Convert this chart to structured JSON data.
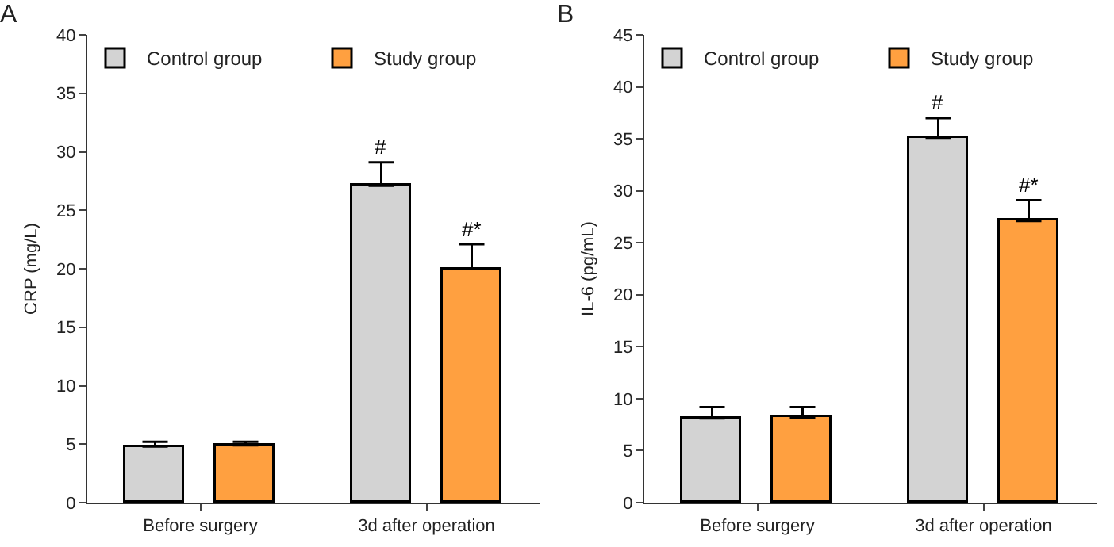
{
  "chart_data": [
    {
      "type": "bar",
      "title": "A",
      "ylabel": "CRP (mg/L)",
      "categories": [
        "Before surgery",
        "3d after operation"
      ],
      "ylim": [
        0,
        40
      ],
      "yticks": [
        0,
        5,
        10,
        15,
        20,
        25,
        30,
        35,
        40
      ],
      "grid": false,
      "legend": "top",
      "series": [
        {
          "name": "Control group",
          "color": "#d3d3d3",
          "values": [
            4.8,
            27.1
          ],
          "errors": [
            [
              4.8,
              5.2
            ],
            [
              27.1,
              29.1
            ]
          ]
        },
        {
          "name": "Study group",
          "color": "#ffa040",
          "values": [
            4.9,
            20.0
          ],
          "errors": [
            [
              4.9,
              5.2
            ],
            [
              20.0,
              22.1
            ]
          ]
        }
      ],
      "annotations": [
        "#",
        "#*"
      ]
    },
    {
      "type": "bar",
      "title": "B",
      "ylabel": "IL-6 (pg/mL)",
      "categories": [
        "Before surgery",
        "3d after operation"
      ],
      "ylim": [
        0,
        45
      ],
      "yticks": [
        0,
        5,
        10,
        15,
        20,
        25,
        30,
        35,
        40,
        45
      ],
      "grid": false,
      "legend": "top",
      "series": [
        {
          "name": "Control group",
          "color": "#d3d3d3",
          "values": [
            8.1,
            35.1
          ],
          "errors": [
            [
              8.1,
              9.2
            ],
            [
              35.1,
              37.0
            ]
          ]
        },
        {
          "name": "Study group",
          "color": "#ffa040",
          "values": [
            8.2,
            27.1
          ],
          "errors": [
            [
              8.2,
              9.2
            ],
            [
              27.1,
              29.1
            ]
          ]
        }
      ],
      "annotations": [
        "#",
        "#*"
      ]
    }
  ]
}
